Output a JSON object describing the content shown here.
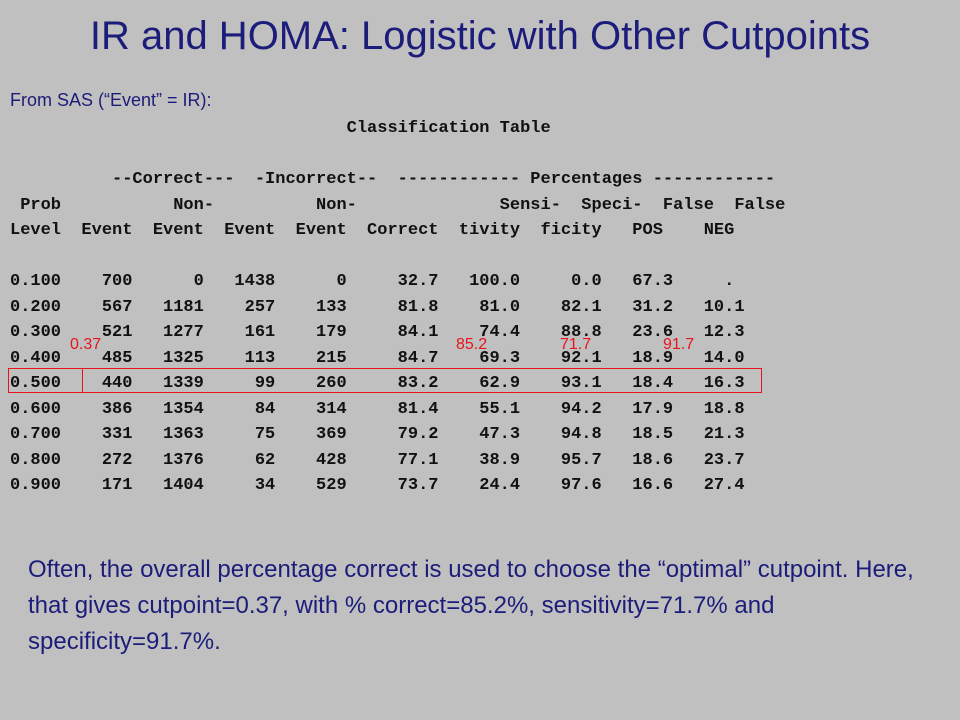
{
  "title": "IR and HOMA: Logistic with Other Cutpoints",
  "source_line": "From SAS  (“Event” = IR):",
  "table": {
    "title_line": "                                 Classification Table",
    "header_lines": [
      "",
      "          --Correct---  -Incorrect--  ------------ Percentages ------------",
      " Prob           Non-          Non-              Sensi-  Speci-  False  False",
      "Level  Event  Event  Event  Event  Correct  tivity  ficity   POS    NEG",
      ""
    ],
    "rows": [
      "0.100    700      0   1438      0     32.7   100.0     0.0   67.3     .",
      "0.200    567   1181    257    133     81.8    81.0    82.1   31.2   10.1",
      "0.300    521   1277    161    179     84.1    74.4    88.8   23.6   12.3",
      "0.400    485   1325    113    215     84.7    69.3    92.1   18.9   14.0",
      "0.500    440   1339     99    260     83.2    62.9    93.1   18.4   16.3",
      "0.600    386   1354     84    314     81.4    55.1    94.2   17.9   18.8",
      "0.700    331   1363     75    369     79.2    47.3    94.8   18.5   21.3",
      "0.800    272   1376     62    428     77.1    38.9    95.7   18.6   23.7",
      "0.900    171   1404     34    529     73.7    24.4    97.6   16.6   27.4"
    ]
  },
  "annotations": {
    "cutpoint": "0.37",
    "correct": "85.2",
    "sensitivity": "71.7",
    "specificity": "91.7"
  },
  "caption": "Often, the overall percentage correct is used to choose the “optimal” cutpoint. Here, that gives cutpoint=0.37, with % correct=85.2%, sensitivity=71.7% and specificity=91.7%.",
  "colors": {
    "title": "#1c1c7a",
    "annotation": "#e8141c",
    "background": "#c0c0c0"
  }
}
